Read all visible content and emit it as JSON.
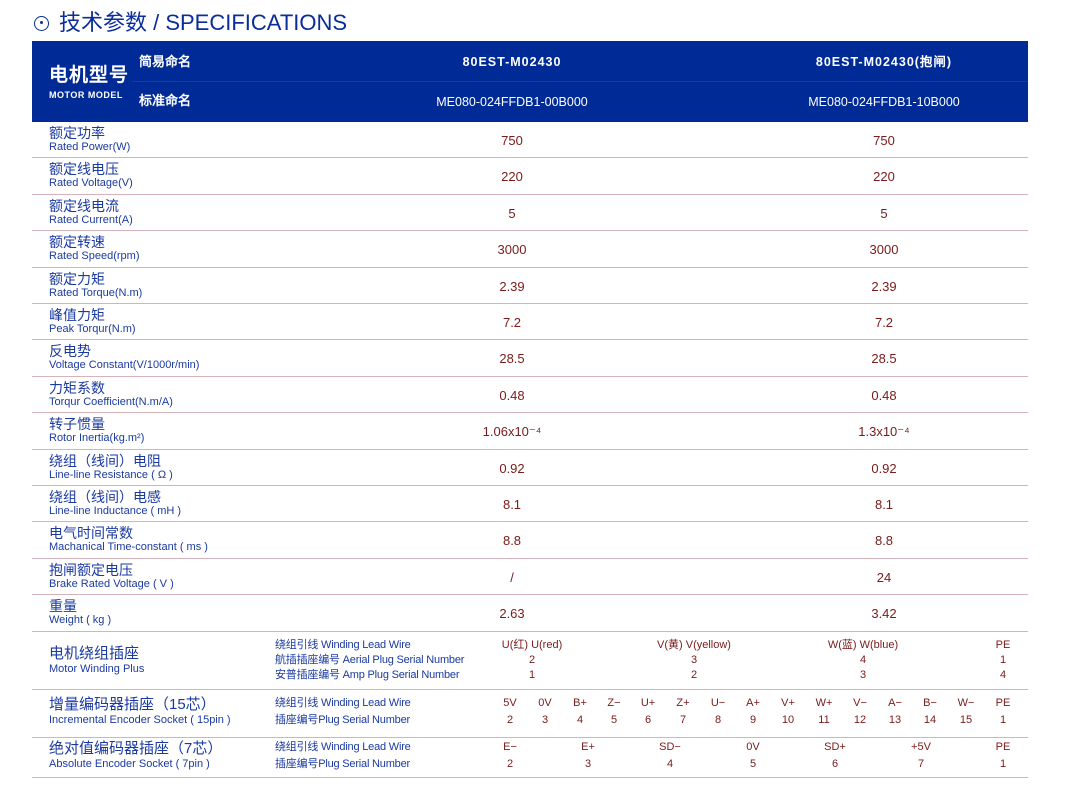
{
  "title": "技术参数 / SPECIFICATIONS",
  "header": {
    "model_zh": "电机型号",
    "model_en": "MOTOR MODEL",
    "short_name_label": "简易命名",
    "std_name_label": "标准命名",
    "models": [
      {
        "short": "80EST-M02430",
        "std": "ME080-024FFDB1-00B000"
      },
      {
        "short": "80EST-M02430(抱闸)",
        "std": "ME080-024FFDB1-10B000"
      }
    ]
  },
  "specs": [
    {
      "zh": "额定功率",
      "en": "Rated Power(W)",
      "v": [
        "750",
        "750"
      ]
    },
    {
      "zh": "额定线电压",
      "en": "Rated Voltage(V)",
      "v": [
        "220",
        "220"
      ]
    },
    {
      "zh": "额定线电流",
      "en": "Rated Current(A)",
      "v": [
        "5",
        "5"
      ]
    },
    {
      "zh": "额定转速",
      "en": "Rated Speed(rpm)",
      "v": [
        "3000",
        "3000"
      ]
    },
    {
      "zh": "额定力矩",
      "en": "Rated Torque(N.m)",
      "v": [
        "2.39",
        "2.39"
      ]
    },
    {
      "zh": "峰值力矩",
      "en": "Peak Torqur(N.m)",
      "v": [
        "7.2",
        "7.2"
      ]
    },
    {
      "zh": "反电势",
      "en": "Voltage Constant(V/1000r/min)",
      "v": [
        "28.5",
        "28.5"
      ]
    },
    {
      "zh": "力矩系数",
      "en": "Torqur Coefficient(N.m/A)",
      "v": [
        "0.48",
        "0.48"
      ]
    },
    {
      "zh": "转子惯量",
      "en": "Rotor Inertia(kg.m²)",
      "v": [
        "1.06x10⁻⁴",
        "1.3x10⁻⁴"
      ]
    },
    {
      "zh": "绕组（线间）电阻",
      "en": "Line-line Resistance ( Ω )",
      "v": [
        "0.92",
        "0.92"
      ]
    },
    {
      "zh": "绕组（线间）电感",
      "en": "Line-line Inductance ( mH )",
      "v": [
        "8.1",
        "8.1"
      ]
    },
    {
      "zh": "电气时间常数",
      "en": "Machanical Time-constant ( ms )",
      "v": [
        "8.8",
        "8.8"
      ]
    },
    {
      "zh": "抱闸额定电压",
      "en": "Brake Rated Voltage ( V )",
      "v": [
        "/",
        "24"
      ]
    },
    {
      "zh": "重量",
      "en": "Weight ( kg )",
      "v": [
        "2.63",
        "3.42"
      ]
    }
  ],
  "plugs": [
    {
      "zh": "电机绕组插座",
      "en": "Motor Winding Plus",
      "lines": [
        {
          "label": "绕组引线 Winding Lead Wire",
          "vals": [
            "U(红) U(red)",
            "V(黄) V(yellow)",
            "W(蓝) W(blue)",
            "PE"
          ]
        },
        {
          "label": "航插插座编号 Aerial Plug Serial Number",
          "vals": [
            "2",
            "3",
            "4",
            "1"
          ]
        },
        {
          "label": "安普插座编号 Amp Plug Serial Number",
          "vals": [
            "1",
            "2",
            "3",
            "4"
          ]
        }
      ]
    },
    {
      "zh": "增量编码器插座（15芯）",
      "en": "Incremental Encoder Socket ( 15pin )",
      "lines": [
        {
          "label": "绕组引线 Winding Lead Wire",
          "vals": [
            "5V",
            "0V",
            "B+",
            "Z−",
            "U+",
            "Z+",
            "U−",
            "A+",
            "V+",
            "W+",
            "V−",
            "A−",
            "B−",
            "W−",
            "PE"
          ]
        },
        {
          "label": "插座编号Plug Serial Number",
          "vals": [
            "2",
            "3",
            "4",
            "5",
            "6",
            "7",
            "8",
            "9",
            "10",
            "11",
            "12",
            "13",
            "14",
            "15",
            "1"
          ]
        }
      ]
    },
    {
      "zh": "绝对值编码器插座（7芯）",
      "en": "Absolute Encoder Socket ( 7pin )",
      "lines": [
        {
          "label": "绕组引线 Winding Lead Wire",
          "vals": [
            "E−",
            "E+",
            "SD−",
            "0V",
            "SD+",
            "+5V",
            "PE"
          ]
        },
        {
          "label": "插座编号Plug Serial Number",
          "vals": [
            "2",
            "3",
            "4",
            "5",
            "6",
            "7",
            "1"
          ]
        }
      ]
    }
  ]
}
